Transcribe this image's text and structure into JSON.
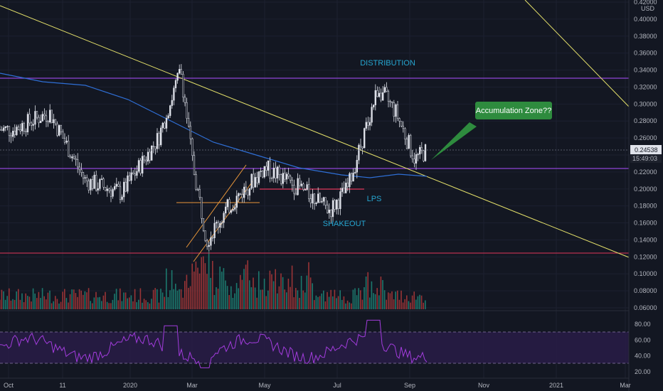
{
  "price_axis": {
    "currency": "USD",
    "ticks": [
      "0.42000",
      "0.40000",
      "0.38000",
      "0.36000",
      "0.34000",
      "0.32000",
      "0.30000",
      "0.28000",
      "0.26000",
      "0.24000",
      "0.22000",
      "0.20000",
      "0.18000",
      "0.16000",
      "0.14000",
      "0.12000",
      "0.10000",
      "0.08000",
      "0.06000"
    ],
    "last_price": "0.24538",
    "countdown": "15:49:03"
  },
  "rsi_axis": {
    "ticks": [
      "80.00",
      "60.00",
      "40.00",
      "20.00"
    ]
  },
  "time_axis": {
    "labels": [
      "Oct",
      "11",
      "2020",
      "Mar",
      "May",
      "Jul",
      "Sep",
      "Nov",
      "2021",
      "Mar"
    ]
  },
  "annotations": {
    "distribution": "DISTRIBUTION",
    "lps": "LPS",
    "shakeout": "SHAKEOUT",
    "accumulation": "Accumulation Zone??"
  },
  "colors": {
    "background": "#131722",
    "grid": "#1f2330",
    "trendline": "#e6e26a",
    "support_line": "#8e44d6",
    "resistance_line": "#8e44d6",
    "low_line": "#e0355a",
    "ma_line": "#2f6fd6",
    "candle": "#e0e3eb",
    "rsi_line": "#a23cdc",
    "rsi_band": "#2a1d4a",
    "volume_up": "#1f8a7a",
    "volume_down": "#b03a3a",
    "annotation_text": "#26a6d1",
    "callout_bg": "#2e8b3e"
  },
  "chart_data": {
    "type": "line",
    "y_unit": "USD",
    "ylim": [
      0.06,
      0.42
    ],
    "x_range": [
      "2019-09-20",
      "2021-03-05"
    ],
    "series": [
      {
        "x": [
          "2019-10-01",
          "2019-11-01",
          "2019-12-01",
          "2020-01-01",
          "2020-02-01",
          "2020-02-20",
          "2020-03-01",
          "2020-03-13",
          "2020-04-01",
          "2020-05-01",
          "2020-06-01",
          "2020-06-25",
          "2020-07-10",
          "2020-08-05",
          "2020-08-20",
          "2020-09-05",
          "2020-09-15"
        ],
        "y": [
          0.27,
          0.29,
          0.21,
          0.195,
          0.26,
          0.34,
          0.23,
          0.14,
          0.18,
          0.225,
          0.2,
          0.175,
          0.2,
          0.32,
          0.29,
          0.235,
          0.245
        ]
      }
    ],
    "horizontal_levels": [
      0.33,
      0.222,
      0.123,
      0.197
    ],
    "rsi": {
      "ylim": [
        20,
        80
      ],
      "upper": 70,
      "lower": 30
    }
  }
}
